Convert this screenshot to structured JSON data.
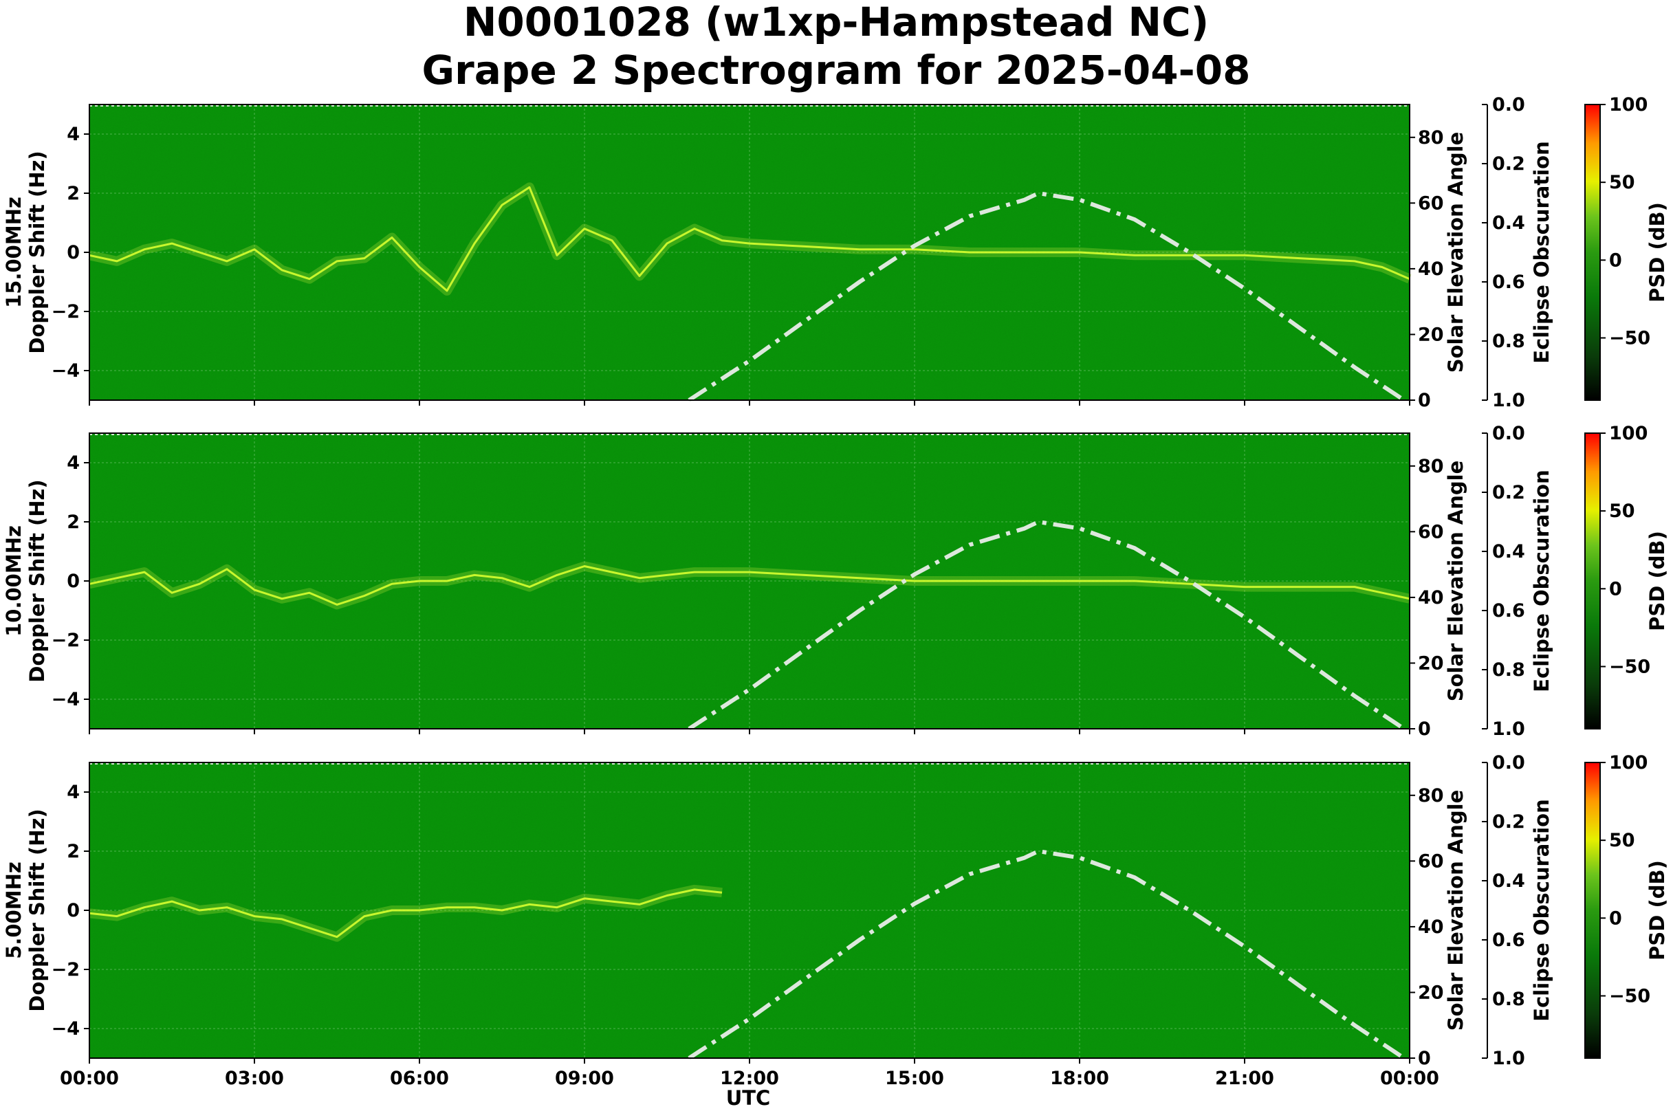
{
  "title_line1": "N0001028 (w1xp-Hampstead NC)",
  "title_line2": "Grape 2 Spectrogram for 2025-04-08",
  "colors": {
    "background": "#0a8a0a",
    "grid": "#6fc46f",
    "trace": "#d8ff30",
    "sun_curve": "#dde8dd",
    "colorbar": [
      "#000000",
      "#0a3c0a",
      "#0a7a0a",
      "#5cbc1c",
      "#e6f000",
      "#ff9a00",
      "#ff0000"
    ]
  },
  "chart_data": [
    {
      "type": "heatmap",
      "panel_label": "15.00MHz",
      "ylabel": "Doppler Shift (Hz)",
      "y_ticks": [
        "4",
        "2",
        "0",
        "−2",
        "−4"
      ],
      "ylim": [
        -5,
        5
      ],
      "right_ylabel": "Solar Elevation Angle",
      "right_ticks": [
        "80",
        "60",
        "40",
        "20",
        "0"
      ],
      "right_ylim": [
        0,
        90
      ],
      "eclipse_label": "Eclipse Obscuration",
      "eclipse_ticks": [
        "0.0",
        "0.2",
        "0.4",
        "0.6",
        "0.8",
        "1.0"
      ],
      "colorbar_label": "PSD (dB)",
      "colorbar_ticks": [
        "100",
        "50",
        "0",
        "−50"
      ],
      "colorbar_range": [
        -90,
        100
      ],
      "doppler_trace": [
        {
          "t": 0.0,
          "hz": -0.1
        },
        {
          "t": 0.5,
          "hz": -0.3
        },
        {
          "t": 1.0,
          "hz": 0.1
        },
        {
          "t": 1.5,
          "hz": 0.3
        },
        {
          "t": 2.0,
          "hz": 0.0
        },
        {
          "t": 2.5,
          "hz": -0.3
        },
        {
          "t": 3.0,
          "hz": 0.1
        },
        {
          "t": 3.5,
          "hz": -0.6
        },
        {
          "t": 4.0,
          "hz": -0.9
        },
        {
          "t": 4.5,
          "hz": -0.3
        },
        {
          "t": 5.0,
          "hz": -0.2
        },
        {
          "t": 5.5,
          "hz": 0.5
        },
        {
          "t": 6.0,
          "hz": -0.5
        },
        {
          "t": 6.5,
          "hz": -1.3
        },
        {
          "t": 7.0,
          "hz": 0.3
        },
        {
          "t": 7.5,
          "hz": 1.6
        },
        {
          "t": 8.0,
          "hz": 2.2
        },
        {
          "t": 8.5,
          "hz": -0.1
        },
        {
          "t": 9.0,
          "hz": 0.8
        },
        {
          "t": 9.5,
          "hz": 0.4
        },
        {
          "t": 10.0,
          "hz": -0.8
        },
        {
          "t": 10.5,
          "hz": 0.3
        },
        {
          "t": 11.0,
          "hz": 0.8
        },
        {
          "t": 11.5,
          "hz": 0.4
        },
        {
          "t": 12.0,
          "hz": 0.3
        },
        {
          "t": 13.0,
          "hz": 0.2
        },
        {
          "t": 14.0,
          "hz": 0.1
        },
        {
          "t": 15.0,
          "hz": 0.1
        },
        {
          "t": 16.0,
          "hz": 0.0
        },
        {
          "t": 17.0,
          "hz": 0.0
        },
        {
          "t": 18.0,
          "hz": 0.0
        },
        {
          "t": 19.0,
          "hz": -0.1
        },
        {
          "t": 20.0,
          "hz": -0.1
        },
        {
          "t": 21.0,
          "hz": -0.1
        },
        {
          "t": 22.0,
          "hz": -0.2
        },
        {
          "t": 23.0,
          "hz": -0.3
        },
        {
          "t": 23.5,
          "hz": -0.5
        },
        {
          "t": 24.0,
          "hz": -0.9
        }
      ]
    },
    {
      "type": "heatmap",
      "panel_label": "10.00MHz",
      "ylabel": "Doppler Shift (Hz)",
      "y_ticks": [
        "4",
        "2",
        "0",
        "−2",
        "−4"
      ],
      "ylim": [
        -5,
        5
      ],
      "right_ylabel": "Solar Elevation Angle",
      "right_ticks": [
        "80",
        "60",
        "40",
        "20",
        "0"
      ],
      "right_ylim": [
        0,
        90
      ],
      "eclipse_label": "Eclipse Obscuration",
      "eclipse_ticks": [
        "0.0",
        "0.2",
        "0.4",
        "0.6",
        "0.8",
        "1.0"
      ],
      "colorbar_label": "PSD (dB)",
      "colorbar_ticks": [
        "100",
        "50",
        "0",
        "−50"
      ],
      "colorbar_range": [
        -90,
        100
      ],
      "doppler_trace": [
        {
          "t": 0.0,
          "hz": -0.1
        },
        {
          "t": 0.5,
          "hz": 0.1
        },
        {
          "t": 1.0,
          "hz": 0.3
        },
        {
          "t": 1.5,
          "hz": -0.4
        },
        {
          "t": 2.0,
          "hz": -0.1
        },
        {
          "t": 2.5,
          "hz": 0.4
        },
        {
          "t": 3.0,
          "hz": -0.3
        },
        {
          "t": 3.5,
          "hz": -0.6
        },
        {
          "t": 4.0,
          "hz": -0.4
        },
        {
          "t": 4.5,
          "hz": -0.8
        },
        {
          "t": 5.0,
          "hz": -0.5
        },
        {
          "t": 5.5,
          "hz": -0.1
        },
        {
          "t": 6.0,
          "hz": 0.0
        },
        {
          "t": 6.5,
          "hz": 0.0
        },
        {
          "t": 7.0,
          "hz": 0.2
        },
        {
          "t": 7.5,
          "hz": 0.1
        },
        {
          "t": 8.0,
          "hz": -0.2
        },
        {
          "t": 8.5,
          "hz": 0.2
        },
        {
          "t": 9.0,
          "hz": 0.5
        },
        {
          "t": 9.5,
          "hz": 0.3
        },
        {
          "t": 10.0,
          "hz": 0.1
        },
        {
          "t": 10.5,
          "hz": 0.2
        },
        {
          "t": 11.0,
          "hz": 0.3
        },
        {
          "t": 12.0,
          "hz": 0.3
        },
        {
          "t": 13.0,
          "hz": 0.2
        },
        {
          "t": 14.0,
          "hz": 0.1
        },
        {
          "t": 15.0,
          "hz": 0.0
        },
        {
          "t": 16.0,
          "hz": 0.0
        },
        {
          "t": 17.0,
          "hz": 0.0
        },
        {
          "t": 18.0,
          "hz": 0.0
        },
        {
          "t": 19.0,
          "hz": 0.0
        },
        {
          "t": 20.0,
          "hz": -0.1
        },
        {
          "t": 21.0,
          "hz": -0.2
        },
        {
          "t": 22.0,
          "hz": -0.2
        },
        {
          "t": 23.0,
          "hz": -0.2
        },
        {
          "t": 23.5,
          "hz": -0.4
        },
        {
          "t": 24.0,
          "hz": -0.6
        }
      ]
    },
    {
      "type": "heatmap",
      "panel_label": "5.00MHz",
      "ylabel": "Doppler Shift (Hz)",
      "y_ticks": [
        "4",
        "2",
        "0",
        "−2",
        "−4"
      ],
      "ylim": [
        -5,
        5
      ],
      "right_ylabel": "Solar Elevation Angle",
      "right_ticks": [
        "80",
        "60",
        "40",
        "20",
        "0"
      ],
      "right_ylim": [
        0,
        90
      ],
      "eclipse_label": "Eclipse Obscuration",
      "eclipse_ticks": [
        "0.0",
        "0.2",
        "0.4",
        "0.6",
        "0.8",
        "1.0"
      ],
      "colorbar_label": "PSD (dB)",
      "colorbar_ticks": [
        "100",
        "50",
        "0",
        "−50"
      ],
      "colorbar_range": [
        -90,
        100
      ],
      "doppler_trace": [
        {
          "t": 0.0,
          "hz": -0.1
        },
        {
          "t": 0.5,
          "hz": -0.2
        },
        {
          "t": 1.0,
          "hz": 0.1
        },
        {
          "t": 1.5,
          "hz": 0.3
        },
        {
          "t": 2.0,
          "hz": 0.0
        },
        {
          "t": 2.5,
          "hz": 0.1
        },
        {
          "t": 3.0,
          "hz": -0.2
        },
        {
          "t": 3.5,
          "hz": -0.3
        },
        {
          "t": 4.0,
          "hz": -0.6
        },
        {
          "t": 4.5,
          "hz": -0.9
        },
        {
          "t": 5.0,
          "hz": -0.2
        },
        {
          "t": 5.5,
          "hz": 0.0
        },
        {
          "t": 6.0,
          "hz": 0.0
        },
        {
          "t": 6.5,
          "hz": 0.1
        },
        {
          "t": 7.0,
          "hz": 0.1
        },
        {
          "t": 7.5,
          "hz": 0.0
        },
        {
          "t": 8.0,
          "hz": 0.2
        },
        {
          "t": 8.5,
          "hz": 0.1
        },
        {
          "t": 9.0,
          "hz": 0.4
        },
        {
          "t": 9.5,
          "hz": 0.3
        },
        {
          "t": 10.0,
          "hz": 0.2
        },
        {
          "t": 10.5,
          "hz": 0.5
        },
        {
          "t": 11.0,
          "hz": 0.7
        },
        {
          "t": 11.5,
          "hz": 0.6
        }
      ]
    }
  ],
  "solar_elevation": {
    "points": [
      {
        "t": 10.9,
        "deg": 0
      },
      {
        "t": 12.0,
        "deg": 12
      },
      {
        "t": 13.0,
        "deg": 24
      },
      {
        "t": 14.0,
        "deg": 36
      },
      {
        "t": 15.0,
        "deg": 47
      },
      {
        "t": 16.0,
        "deg": 56
      },
      {
        "t": 17.0,
        "deg": 61
      },
      {
        "t": 17.25,
        "deg": 63
      },
      {
        "t": 18.0,
        "deg": 61
      },
      {
        "t": 19.0,
        "deg": 55
      },
      {
        "t": 20.0,
        "deg": 45
      },
      {
        "t": 21.0,
        "deg": 34
      },
      {
        "t": 22.0,
        "deg": 22
      },
      {
        "t": 23.0,
        "deg": 10
      },
      {
        "t": 23.9,
        "deg": 0
      }
    ]
  },
  "x_axis": {
    "label": "UTC",
    "ticks": [
      "00:00",
      "03:00",
      "06:00",
      "09:00",
      "12:00",
      "15:00",
      "18:00",
      "21:00",
      "00:00"
    ],
    "range_hours": [
      0,
      24
    ]
  }
}
